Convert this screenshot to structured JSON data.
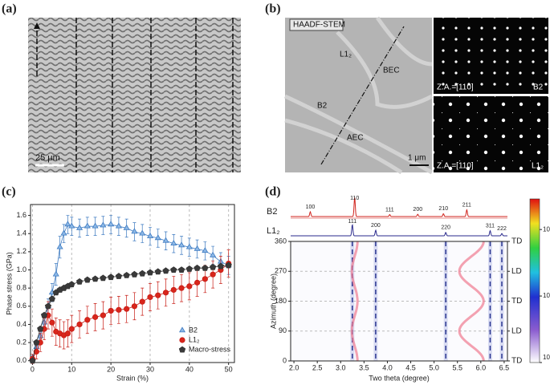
{
  "panels": {
    "a": {
      "label": "(a)",
      "scale_bar": "25 μm"
    },
    "b": {
      "label": "(b)",
      "inset_title": "HAADF-STEM",
      "phase_labels": [
        "L1₂",
        "BEC",
        "B2",
        "AEC"
      ],
      "scale_bar": "1 μm",
      "patterns": [
        {
          "zone_axis": "Z.A.=[110]",
          "phase": "B2"
        },
        {
          "zone_axis": "Z.A.=[110]",
          "phase": "L1₂"
        }
      ]
    }
  },
  "chart_data": [
    {
      "type": "scatter",
      "panel_label": "(c)",
      "x_label": "Strain (%)",
      "y_label": "Phase stress (GPa)",
      "x": [
        0,
        1,
        2,
        3,
        4,
        5,
        6,
        7,
        8,
        9,
        10,
        12,
        14,
        16,
        18,
        20,
        22,
        24,
        26,
        28,
        30,
        32,
        34,
        36,
        38,
        40,
        42,
        44,
        46,
        48,
        50
      ],
      "series": [
        {
          "name": "B2",
          "color": "#3a78c0",
          "fill": "#8db8e6",
          "marker": "triangle",
          "values": [
            0.03,
            0.15,
            0.27,
            0.42,
            0.6,
            0.75,
            0.95,
            1.25,
            1.4,
            1.5,
            1.48,
            1.46,
            1.48,
            1.48,
            1.49,
            1.5,
            1.48,
            1.46,
            1.42,
            1.4,
            1.37,
            1.35,
            1.32,
            1.29,
            1.27,
            1.25,
            1.23,
            1.21,
            1.16,
            1.09,
            1.05
          ],
          "errors": [
            0.04,
            0.05,
            0.06,
            0.07,
            0.08,
            0.1,
            0.12,
            0.12,
            0.1,
            0.1,
            0.1,
            0.1,
            0.1,
            0.1,
            0.1,
            0.1,
            0.1,
            0.1,
            0.1,
            0.1,
            0.1,
            0.1,
            0.1,
            0.1,
            0.1,
            0.1,
            0.1,
            0.1,
            0.1,
            0.1,
            0.1
          ]
        },
        {
          "name": "L1₂",
          "color": "#c81d16",
          "fill": "#d8261c",
          "marker": "circle",
          "values": [
            0.02,
            0.1,
            0.2,
            0.35,
            0.5,
            0.42,
            0.32,
            0.3,
            0.28,
            0.3,
            0.35,
            0.4,
            0.45,
            0.48,
            0.5,
            0.55,
            0.56,
            0.57,
            0.6,
            0.65,
            0.7,
            0.72,
            0.75,
            0.78,
            0.8,
            0.82,
            0.86,
            0.9,
            0.95,
            1.0,
            1.07
          ],
          "errors": [
            0.05,
            0.08,
            0.1,
            0.12,
            0.15,
            0.15,
            0.15,
            0.15,
            0.15,
            0.15,
            0.15,
            0.15,
            0.15,
            0.15,
            0.15,
            0.15,
            0.15,
            0.15,
            0.15,
            0.15,
            0.15,
            0.15,
            0.15,
            0.15,
            0.15,
            0.15,
            0.15,
            0.15,
            0.15,
            0.15,
            0.15
          ]
        },
        {
          "name": "Macro-stress",
          "color": "#333333",
          "fill": "#3a3a3a",
          "marker": "pentagon",
          "values": [
            0,
            0.2,
            0.35,
            0.5,
            0.6,
            0.68,
            0.75,
            0.78,
            0.8,
            0.82,
            0.84,
            0.87,
            0.89,
            0.9,
            0.91,
            0.92,
            0.93,
            0.94,
            0.95,
            0.96,
            0.97,
            0.98,
            0.99,
            1.0,
            1.0,
            1.01,
            1.02,
            1.02,
            1.03,
            1.04,
            1.05
          ]
        }
      ],
      "xlim": [
        -0.5,
        51.5
      ],
      "xticks": [
        0,
        10,
        20,
        30,
        40,
        50
      ],
      "ylim": [
        -0.02,
        1.72
      ],
      "yticks": [
        {
          "value": 0,
          "label": "0.0"
        },
        0.2,
        0.4,
        0.6,
        0.8,
        {
          "value": 1,
          "label": "1.0"
        },
        1.2,
        1.4,
        1.6
      ],
      "grid": true,
      "legend": "lower right"
    },
    {
      "type": "diffraction_map",
      "panel_label": "(d)",
      "x_label": "Two theta (degree)",
      "y_label": "Azimuth (degree)",
      "xlim": [
        1.93,
        6.57
      ],
      "xticks": [
        {
          "value": 2,
          "label": "2.0"
        },
        2.5,
        {
          "value": 3,
          "label": "3.0"
        },
        3.5,
        {
          "value": 4,
          "label": "4.0"
        },
        4.5,
        {
          "value": 5,
          "label": "5.0"
        },
        5.5,
        {
          "value": 6,
          "label": "6.0"
        },
        6.5
      ],
      "ylim": [
        0,
        360
      ],
      "yticks": [
        0,
        90,
        180,
        270,
        360
      ],
      "direction_labels": [
        {
          "value": 360,
          "label": "TD"
        },
        {
          "value": 270,
          "label": "LD"
        },
        {
          "value": 180,
          "label": "TD"
        },
        {
          "value": 90,
          "label": "LD"
        },
        {
          "value": 0,
          "label": "TD"
        }
      ],
      "profiles": [
        {
          "name": "B2",
          "color": "#d0231c",
          "x": [
            2.35,
            3.3,
            4.05,
            4.65,
            5.2,
            5.7
          ],
          "labels": [
            "100",
            "110",
            "111",
            "200",
            "210",
            "211"
          ],
          "heights": [
            0.25,
            1,
            0.1,
            0.12,
            0.15,
            0.35
          ]
        },
        {
          "name": "L1₂",
          "color": "#2a2a8c",
          "x": [
            3.25,
            3.75,
            5.25,
            6.2,
            6.45
          ],
          "labels": [
            "111",
            "200",
            "220",
            "311",
            "222"
          ],
          "heights": [
            1,
            0.5,
            0.3,
            0.45,
            0.2
          ]
        }
      ],
      "curves": [
        {
          "center": 3.3,
          "amplitude": 0.06
        },
        {
          "center": 5.8,
          "amplitude": 0.26
        }
      ],
      "clim": [
        3,
        5.46
      ],
      "cticks": [
        {
          "value": 3,
          "label": "10³"
        },
        {
          "value": 4,
          "label": "10⁴"
        },
        {
          "value": 5,
          "label": "10⁵"
        }
      ]
    }
  ]
}
